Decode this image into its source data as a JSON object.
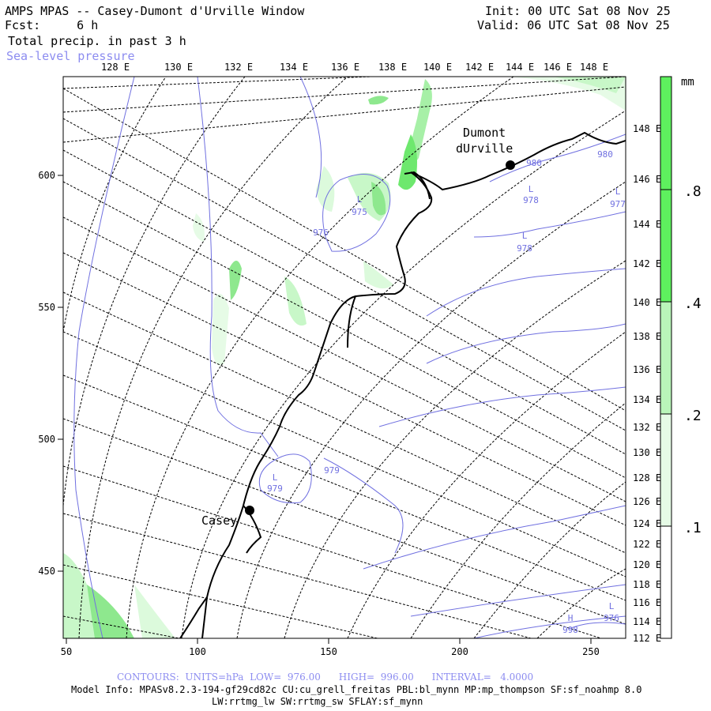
{
  "header": {
    "title": "AMPS MPAS -- Casey-Dumont d'Urville Window",
    "fcst_label": "Fcst:",
    "fcst_value": "6 h",
    "field": "Total precip. in past 3 h",
    "overlay": "Sea-level pressure",
    "init": "Init: 00 UTC Sat 08 Nov 25",
    "valid": "Valid: 06 UTC Sat 08 Nov 25"
  },
  "map": {
    "top_lon_labels": [
      "128 E",
      "130 E",
      "132 E",
      "134 E",
      "136 E",
      "138 E",
      "140 E",
      "142 E",
      "144 E",
      "146 E",
      "148 E"
    ],
    "right_lon_labels": [
      "148 E",
      "146 E",
      "144 E",
      "142 E",
      "140 E",
      "138 E",
      "136 E",
      "134 E",
      "132 E",
      "130 E",
      "128 E",
      "126 E",
      "124 E",
      "122 E",
      "120 E",
      "118 E",
      "116 E",
      "114 E",
      "112 E"
    ],
    "x_ticks": [
      "50",
      "100",
      "150",
      "200",
      "250"
    ],
    "y_ticks": [
      "600",
      "550",
      "500",
      "450"
    ],
    "stations": [
      {
        "name": "Casey"
      },
      {
        "name": "Dumont dUrville"
      }
    ],
    "pressure_labels": [
      {
        "text": "L",
        "value": "975"
      },
      {
        "text": "",
        "value": "976"
      },
      {
        "text": "L",
        "value": "979"
      },
      {
        "text": "",
        "value": "979"
      },
      {
        "text": "",
        "value": "980"
      },
      {
        "text": "L",
        "value": "978"
      },
      {
        "text": "L",
        "value": "978"
      },
      {
        "text": "",
        "value": "980"
      },
      {
        "text": "L",
        "value": "977"
      },
      {
        "text": "H",
        "value": "998"
      },
      {
        "text": "L",
        "value": "976"
      }
    ]
  },
  "colorbar": {
    "unit": "mm",
    "levels": [
      ".1",
      ".2",
      ".4",
      ".8"
    ],
    "colors": [
      "#ffffff",
      "#e6fbe6",
      "#b9f5b9",
      "#5ef05e"
    ]
  },
  "footer": {
    "contours": "CONTOURS:  UNITS=hPa  LOW=  976.00      HIGH=  996.00      INTERVAL=   4.0000",
    "model_info": "Model Info: MPASv8.2.3-194-gf29cd82c CU:cu_grell_freitas PBL:bl_mynn MP:mp_thompson SF:sf_noahmp 8.0",
    "model_info2": "LW:rrtmg_lw SW:rrtmg_sw SFLAY:sf_mynn"
  }
}
